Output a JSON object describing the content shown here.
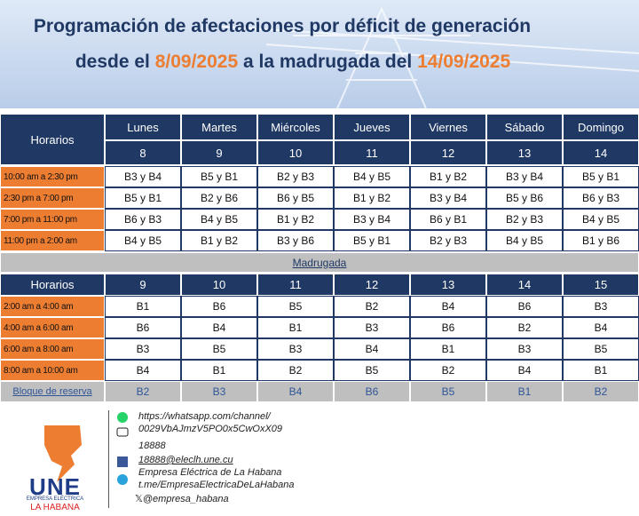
{
  "header": {
    "title_line1": "Programación de afectaciones por déficit de generación",
    "title_line2": {
      "prefix": "desde el",
      "start_date": "8/09/2025",
      "middle": "a la madrugada del",
      "end_date": "14/09/2025"
    }
  },
  "table_day": {
    "horarios": "Horarios",
    "days": [
      {
        "name": "Lunes",
        "number": "8"
      },
      {
        "name": "Martes",
        "number": "9"
      },
      {
        "name": "Miércoles",
        "number": "10"
      },
      {
        "name": "Jueves",
        "number": "11"
      },
      {
        "name": "Viernes",
        "number": "12"
      },
      {
        "name": "Sábado",
        "number": "13"
      },
      {
        "name": "Domingo",
        "number": "14"
      }
    ],
    "rows": [
      {
        "time": "10:00 am a 2:30 pm",
        "cells": [
          "B3 y B4",
          "B5 y B1",
          "B2 y B3",
          "B4 y B5",
          "B1 y B2",
          "B3 y B4",
          "B5 y B1"
        ]
      },
      {
        "time": "2:30 pm a 7:00 pm",
        "cells": [
          "B5 y B1",
          "B2 y B6",
          "B6 y B5",
          "B1 y B2",
          "B3 y B4",
          "B5 y B6",
          "B6 y B3"
        ]
      },
      {
        "time": "7:00 pm a 11:00 pm",
        "cells": [
          "B6 y B3",
          "B4 y B5",
          "B1 y B2",
          "B3 y B4",
          "B6 y B1",
          "B2 y B3",
          "B4 y B5"
        ]
      },
      {
        "time": "11:00 pm a 2:00 am",
        "cells": [
          "B4 y B5",
          "B1 y B2",
          "B3 y B6",
          "B5 y B1",
          "B2 y B3",
          "B4 y B5",
          "B1 y B6"
        ]
      }
    ]
  },
  "madrugada_label": "Madrugada",
  "table_night": {
    "horarios": "Horarios",
    "numbers": [
      "9",
      "10",
      "11",
      "12",
      "13",
      "14",
      "15"
    ],
    "rows": [
      {
        "time": "2:00 am a 4:00 am",
        "cells": [
          "B1",
          "B6",
          "B5",
          "B2",
          "B4",
          "B6",
          "B3"
        ]
      },
      {
        "time": "4:00 am a 6:00 am",
        "cells": [
          "B6",
          "B4",
          "B1",
          "B3",
          "B6",
          "B2",
          "B4"
        ]
      },
      {
        "time": "6:00 am a 8:00 am",
        "cells": [
          "B3",
          "B5",
          "B3",
          "B4",
          "B1",
          "B3",
          "B5"
        ]
      },
      {
        "time": "8:00 am a 10:00 am",
        "cells": [
          "B4",
          "B1",
          "B2",
          "B5",
          "B2",
          "B4",
          "B1"
        ]
      }
    ],
    "reserve": {
      "label": "Bloque de reserva",
      "cells": [
        "B2",
        "B3",
        "B4",
        "B6",
        "B5",
        "B1",
        "B2"
      ]
    }
  },
  "footer": {
    "whatsapp_line1": "https://whatsapp.com/channel/",
    "whatsapp_line2": "0029VbAJmzV5PO0x5CwOxX09",
    "phone": "18888",
    "email": "18888@eleclh.une.cu",
    "facebook": "Empresa Eléctrica de La Habana",
    "telegram": "t.me/EmpresaElectricaDeLaHabana",
    "x_handle": "@empresa_habana"
  },
  "logo": {
    "name": "UNE",
    "line1": "EMPRESA ELÉCTRICA",
    "line2": "LA HABANA"
  }
}
